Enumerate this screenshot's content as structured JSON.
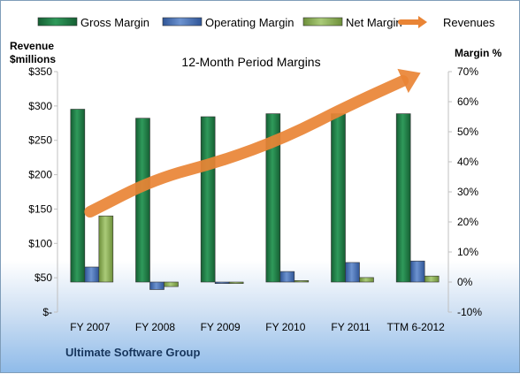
{
  "chart_data": {
    "type": "bar",
    "title": "12-Month Period Margins",
    "categories": [
      "FY 2007",
      "FY 2008",
      "FY 2009",
      "FY 2010",
      "FY 2011",
      "TTM 6-2012"
    ],
    "left_axis": {
      "label_line1": "Revenue",
      "label_line2": "$millions",
      "range": [
        0,
        350
      ],
      "ticks": [
        0,
        50,
        100,
        150,
        200,
        250,
        300,
        350
      ],
      "tick_labels": [
        "$-",
        "$50",
        "$100",
        "$150",
        "$200",
        "$250",
        "$300",
        "$350"
      ]
    },
    "right_axis": {
      "label": "Margin %",
      "range": [
        -10,
        70
      ],
      "ticks": [
        -10,
        0,
        10,
        20,
        30,
        40,
        50,
        60,
        70
      ],
      "tick_labels": [
        "-10%",
        "0%",
        "10%",
        "20%",
        "30%",
        "40%",
        "50%",
        "60%",
        "70%"
      ]
    },
    "series": [
      {
        "name": "Gross Margin",
        "axis": "right",
        "kind": "bar",
        "color": "#1f7a45",
        "values": [
          57.5,
          54.5,
          55.0,
          56.0,
          56.0,
          56.0
        ]
      },
      {
        "name": "Operating Margin",
        "axis": "right",
        "kind": "bar",
        "color": "#4a72b8",
        "values": [
          5.0,
          -2.5,
          -0.5,
          3.5,
          6.5,
          7.0
        ]
      },
      {
        "name": "Net Margin",
        "axis": "right",
        "kind": "bar",
        "color": "#8db25a",
        "values": [
          22.0,
          -1.5,
          -0.5,
          0.5,
          1.5,
          2.0
        ]
      },
      {
        "name": "Revenues",
        "axis": "left",
        "kind": "line",
        "color": "#e98435",
        "values": [
          146,
          194,
          219,
          254,
          302,
          345
        ]
      }
    ],
    "grid": false,
    "legend_position": "top"
  },
  "footer": {
    "company": "Ultimate Software Group"
  }
}
